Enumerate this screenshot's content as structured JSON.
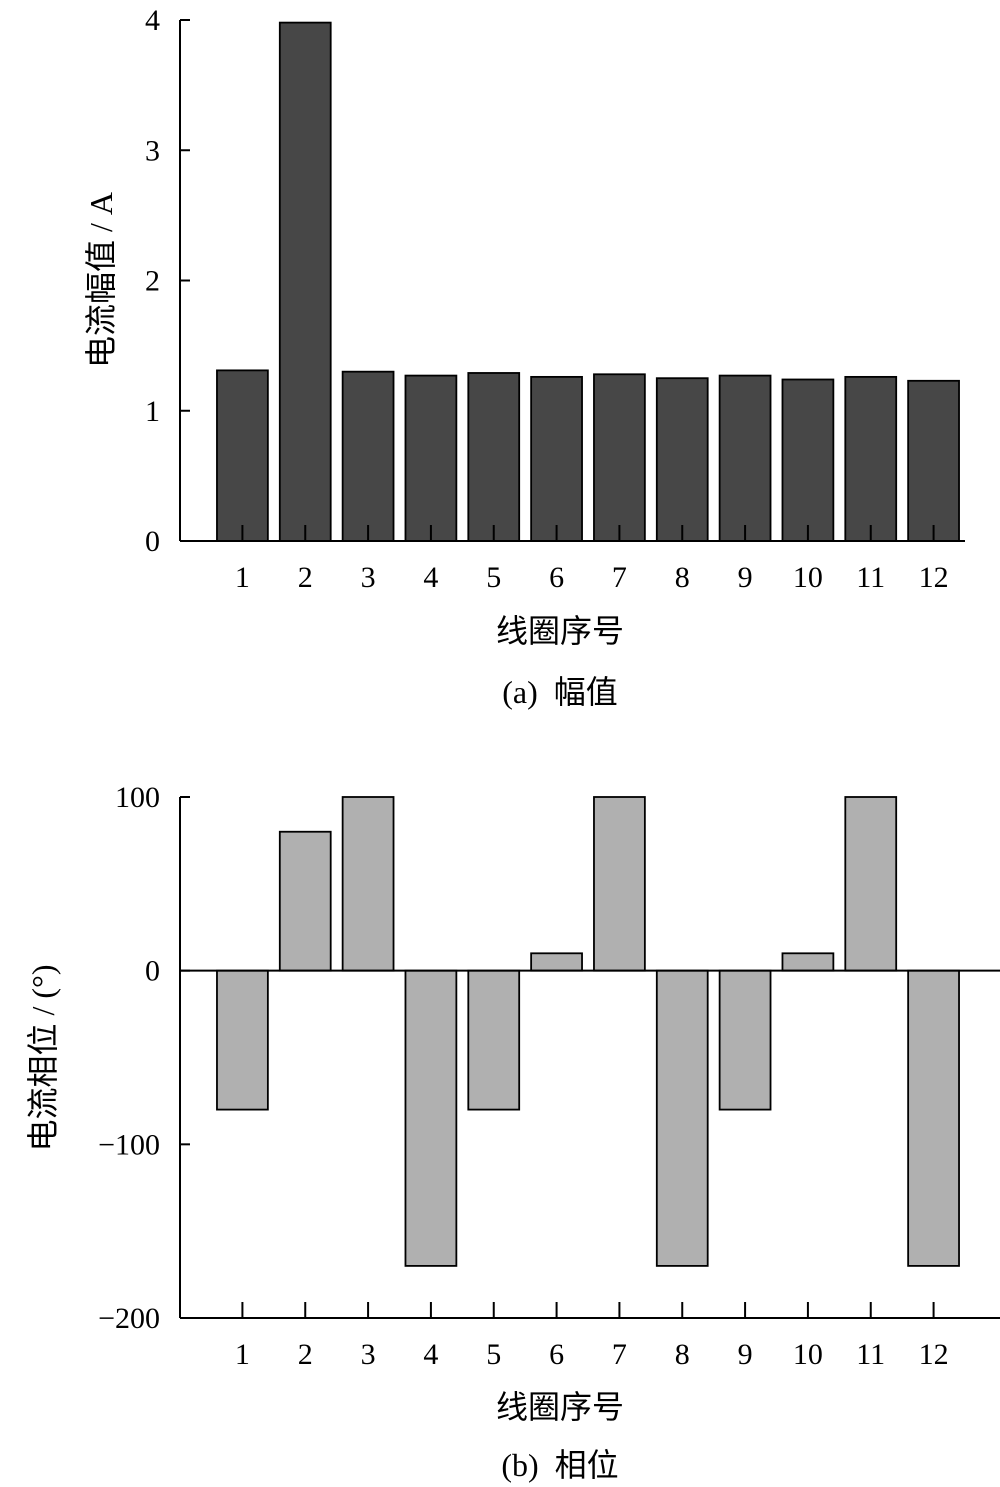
{
  "chart_data": [
    {
      "type": "bar",
      "categories": [
        "1",
        "2",
        "3",
        "4",
        "5",
        "6",
        "7",
        "8",
        "9",
        "10",
        "11",
        "12"
      ],
      "values": [
        1.31,
        3.98,
        1.3,
        1.27,
        1.29,
        1.26,
        1.28,
        1.25,
        1.27,
        1.24,
        1.26,
        1.23
      ],
      "xlabel": "线圈序号",
      "ylabel": "电流幅值 / A",
      "caption": "(a)  幅值",
      "ylim": [
        0,
        4
      ],
      "yticks": [
        0,
        1,
        2,
        3,
        4
      ],
      "ytick_labels": [
        "0",
        "1",
        "2",
        "3",
        "4"
      ],
      "bar_color": "#474747"
    },
    {
      "type": "bar",
      "categories": [
        "1",
        "2",
        "3",
        "4",
        "5",
        "6",
        "7",
        "8",
        "9",
        "10",
        "11",
        "12"
      ],
      "values": [
        -80,
        80,
        100,
        -170,
        -80,
        10,
        100,
        -170,
        -80,
        10,
        100,
        -170
      ],
      "xlabel": "线圈序号",
      "ylabel": "电流相位 / (°)",
      "caption": "(b)  相位",
      "ylim": [
        -200,
        100
      ],
      "yticks": [
        -200,
        -100,
        0,
        100
      ],
      "ytick_labels": [
        "−200",
        "−100",
        "0",
        "100"
      ],
      "bar_color": "#b0b0b0"
    }
  ]
}
